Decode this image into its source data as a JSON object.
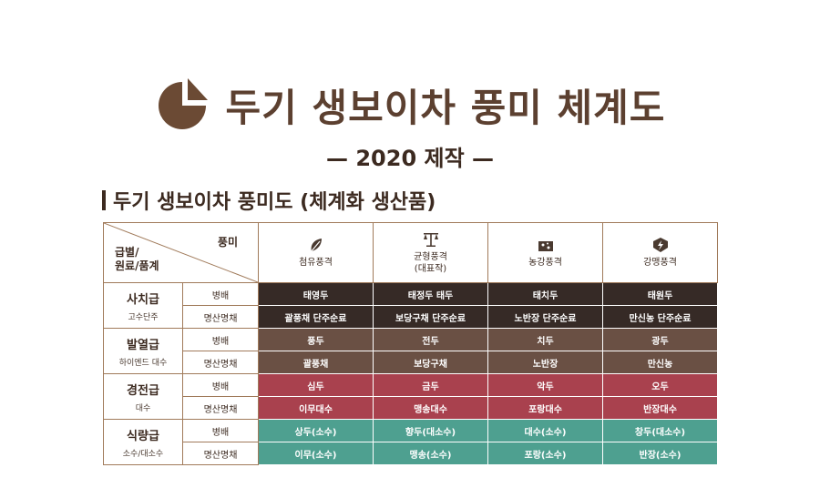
{
  "header": {
    "title": "두기 생보이차 풍미 체계도",
    "subtitle": "— 2020 제작 —",
    "section_title": "두기 생보이차 풍미도 (체계화 생산품)"
  },
  "table": {
    "corner_top": "풍미",
    "corner_bottom": "급별/\n원료/품계",
    "flavors": [
      {
        "icon": "leaf-icon",
        "name": "첨유풍격"
      },
      {
        "icon": "scale-icon",
        "name": "균형풍격\n(대표작)"
      },
      {
        "icon": "cheese-icon",
        "name": "농강풍격"
      },
      {
        "icon": "bolt-shield-icon",
        "name": "강맹풍격"
      }
    ],
    "grades": [
      {
        "name": "사치급",
        "sub": "고수단주",
        "color": "#362a26",
        "rows": [
          {
            "type": "병배",
            "values": [
              "태영두",
              "태정두 태두",
              "태치두",
              "태원두"
            ]
          },
          {
            "type": "명산명채",
            "values": [
              "괄풍채 단주순료",
              "보당구채 단주순료",
              "노반장 단주순료",
              "만신농 단주순료"
            ]
          }
        ]
      },
      {
        "name": "발열급",
        "sub": "하이엔드 대수",
        "color": "#6a5044",
        "rows": [
          {
            "type": "병배",
            "values": [
              "풍두",
              "전두",
              "치두",
              "광두"
            ]
          },
          {
            "type": "명산명채",
            "values": [
              "괄풍채",
              "보당구채",
              "노반장",
              "만신농"
            ]
          }
        ]
      },
      {
        "name": "경전급",
        "sub": "대수",
        "color": "#a9414e",
        "rows": [
          {
            "type": "병배",
            "values": [
              "심두",
              "금두",
              "악두",
              "오두"
            ]
          },
          {
            "type": "명산명채",
            "values": [
              "이무대수",
              "맹송대수",
              "포랑대수",
              "반장대수"
            ]
          }
        ]
      },
      {
        "name": "식량급",
        "sub": "소수/대소수",
        "color": "#4ea090",
        "rows": [
          {
            "type": "병배",
            "values": [
              "상두(소수)",
              "향두(대소수)",
              "대수(소수)",
              "창두(대소수)"
            ]
          },
          {
            "type": "명산명채",
            "values": [
              "이무(소수)",
              "맹송(소수)",
              "포랑(소수)",
              "반장(소수)"
            ]
          }
        ]
      }
    ]
  }
}
